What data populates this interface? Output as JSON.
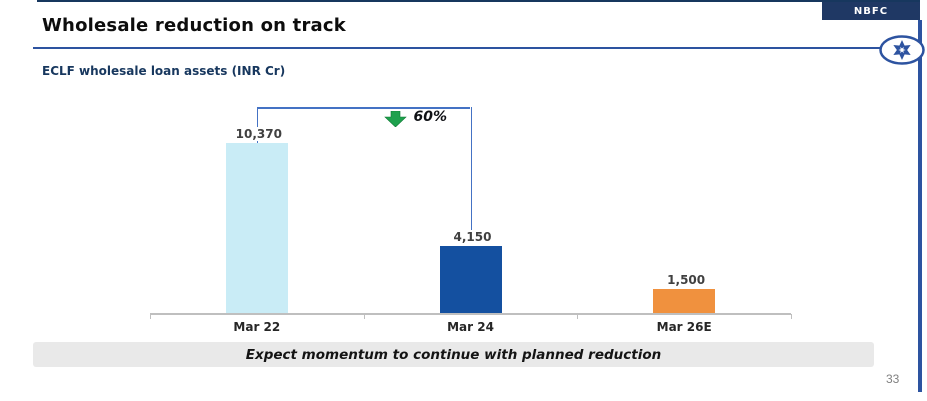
{
  "slide": {
    "title": "Wholesale reduction on track",
    "corner_badge": "NBFC",
    "subtitle": "ECLF wholesale loan assets (INR Cr)",
    "footer_banner": "Expect momentum to continue with planned reduction",
    "page_number": "33"
  },
  "colors": {
    "title_text": "#0D0D0D",
    "badge_bg": "#1F3864",
    "accent_line_blue": "#2D53A0",
    "bracket_blue": "#4472C4",
    "arrow_green": "#1EA14D",
    "axis_gray": "#BFBFBF",
    "banner_bg": "#E9E9E9",
    "bar_light_blue": "#C9ECF6",
    "bar_dark_blue": "#1450A0",
    "bar_orange": "#F0913E"
  },
  "chart_data": {
    "type": "bar",
    "title": "ECLF wholesale loan assets (INR Cr)",
    "categories": [
      "Mar 22",
      "Mar 24",
      "Mar 26E"
    ],
    "values": [
      10370,
      4150,
      1500
    ],
    "value_labels": [
      "10,370",
      "4,150",
      "1,500"
    ],
    "bar_colors": [
      "#C9ECF6",
      "#1450A0",
      "#F0913E"
    ],
    "xlabel": "",
    "ylabel": "",
    "ylim": [
      0,
      10900
    ],
    "grid": false,
    "legend": "none",
    "annotation": {
      "label": "60%",
      "direction": "decrease",
      "icon": "green-down-arrow",
      "from_category": "Mar 22",
      "to_category": "Mar 24"
    }
  }
}
